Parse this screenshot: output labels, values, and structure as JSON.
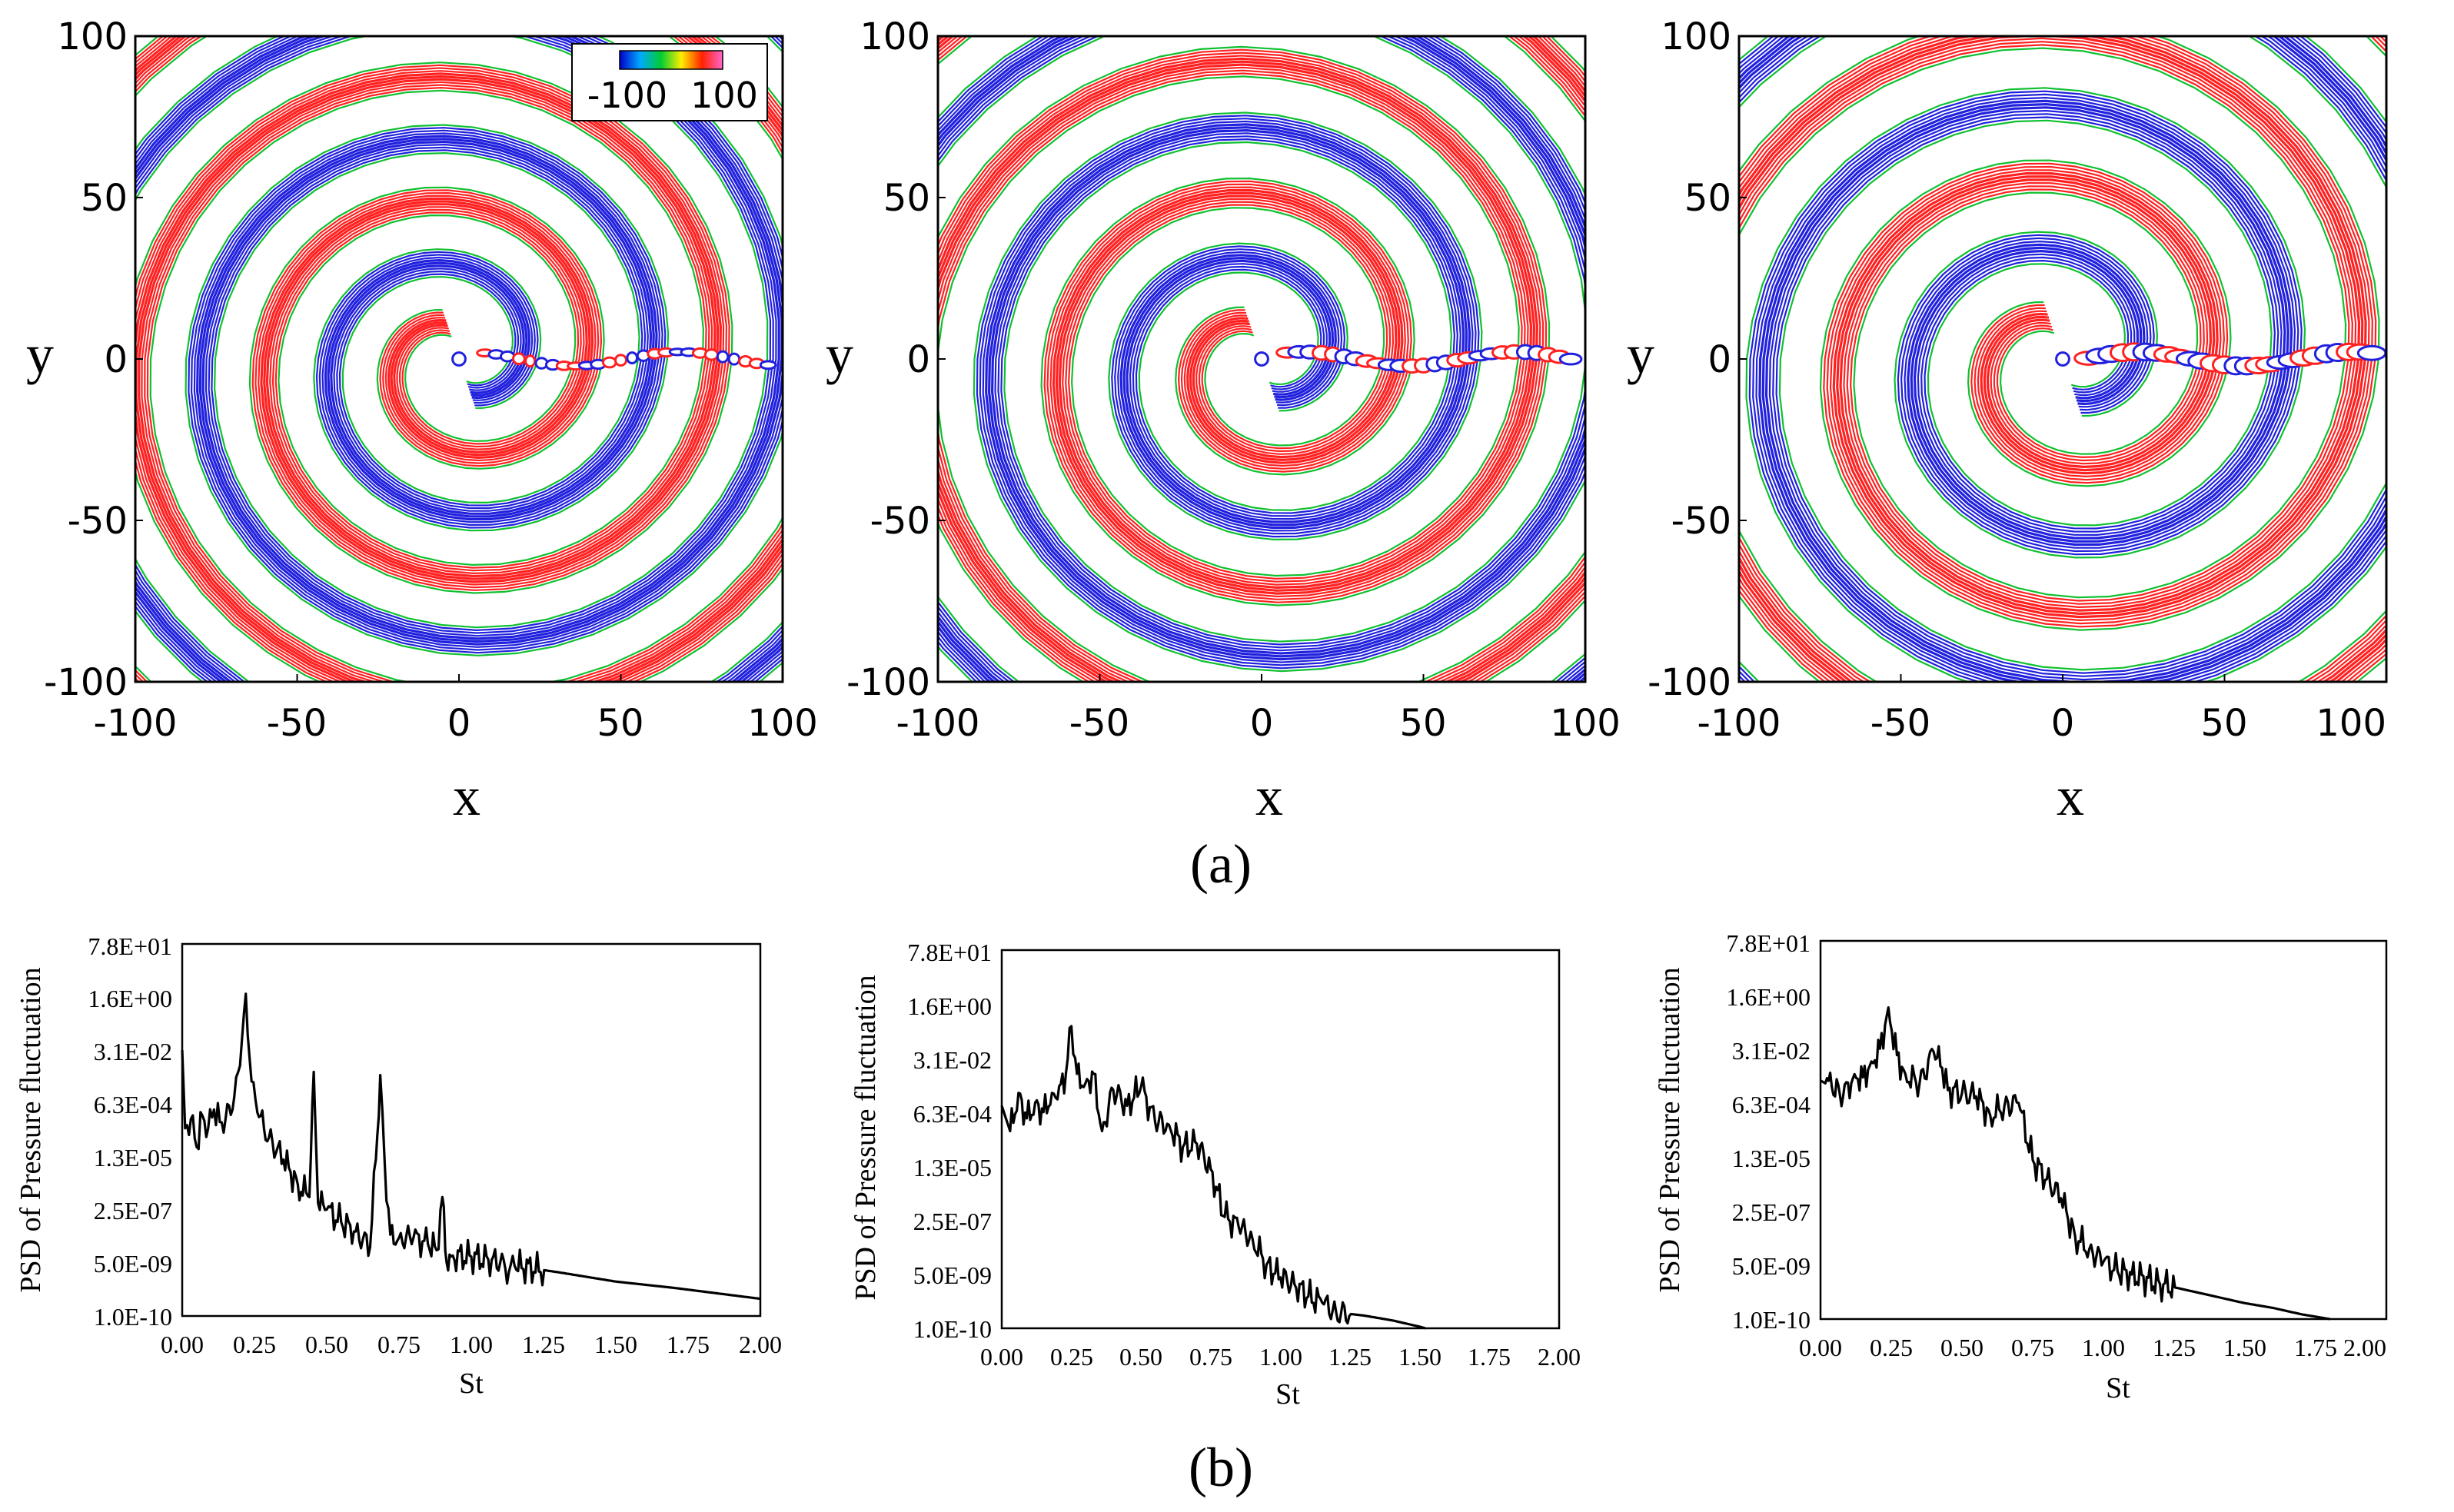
{
  "figure": {
    "panel_labels": {
      "a": "(a)",
      "b": "(b)"
    },
    "colorbar": {
      "min_label": "-100",
      "max_label": "100",
      "colors": [
        "#0000cc",
        "#00aaff",
        "#00cc33",
        "#ffee00",
        "#ff2200",
        "#ff66cc"
      ]
    },
    "contour_colors": {
      "positive": "#ff2020",
      "negative": "#2020dd",
      "zero": "#10c030"
    }
  },
  "chart_data": [
    {
      "type": "contour",
      "title": "",
      "xlabel": "x",
      "ylabel": "y",
      "xlim": [
        -100,
        100
      ],
      "ylim": [
        -100,
        100
      ],
      "xticks": [
        "-100",
        "-50",
        "0",
        "50",
        "100"
      ],
      "yticks": [
        "100",
        "50",
        "0",
        "-50",
        "-100"
      ],
      "wavelength": 19,
      "swirl": 0.9
    },
    {
      "type": "contour",
      "title": "",
      "xlabel": "x",
      "ylabel": "y",
      "xlim": [
        -100,
        100
      ],
      "ylim": [
        -100,
        100
      ],
      "xticks": [
        "-100",
        "-50",
        "0",
        "50",
        "100"
      ],
      "yticks": [
        "100",
        "50",
        "0",
        "-50",
        "-100"
      ],
      "wavelength": 20,
      "swirl": 1.3
    },
    {
      "type": "contour",
      "title": "",
      "xlabel": "x",
      "ylabel": "y",
      "xlim": [
        -100,
        100
      ],
      "ylim": [
        -100,
        100
      ],
      "xticks": [
        "-100",
        "-50",
        "0",
        "50",
        "100"
      ],
      "yticks": [
        "100",
        "50",
        "0",
        "-50",
        "-100"
      ],
      "wavelength": 22,
      "swirl": 1.6
    },
    {
      "type": "line",
      "title": "",
      "xlabel": "St",
      "ylabel": "PSD  of Pressure fluctuation",
      "xlim": [
        0,
        2
      ],
      "yscale": "log",
      "ylim_log10": [
        -10,
        1.892
      ],
      "xticks": [
        "0.00",
        "0.25",
        "0.50",
        "0.75",
        "1.00",
        "1.25",
        "1.50",
        "1.75",
        "2.00"
      ],
      "yticks": [
        "7.8E+01",
        "1.6E+00",
        "3.1E-02",
        "6.3E-04",
        "1.3E-05",
        "2.5E-07",
        "5.0E-09",
        "1.0E-10"
      ],
      "series": [
        {
          "name": "PSD",
          "x": [
            0.0,
            0.01,
            0.03,
            0.05,
            0.07,
            0.09,
            0.11,
            0.13,
            0.15,
            0.18,
            0.2,
            0.22,
            0.24,
            0.26,
            0.3,
            0.35,
            0.4,
            0.44,
            0.455,
            0.47,
            0.5,
            0.55,
            0.6,
            0.65,
            0.67,
            0.685,
            0.7,
            0.72,
            0.75,
            0.8,
            0.85,
            0.88,
            0.9,
            0.915,
            0.93,
            1.0,
            1.1,
            1.13,
            1.15,
            1.3,
            1.5,
            1.7,
            2.0
          ],
          "y": [
            -1.5,
            -4.0,
            -3.7,
            -4.6,
            -3.6,
            -4.0,
            -3.4,
            -3.8,
            -3.7,
            -3.0,
            -2.0,
            0.3,
            -2.5,
            -3.5,
            -4.3,
            -5.0,
            -5.8,
            -6.2,
            -2.2,
            -6.4,
            -6.6,
            -7.0,
            -7.3,
            -7.8,
            -5.0,
            -2.3,
            -5.0,
            -7.4,
            -7.5,
            -7.5,
            -7.7,
            -7.9,
            -6.2,
            -8.3,
            -8.1,
            -8.1,
            -8.3,
            -8.6,
            -8.4,
            -8.6,
            -8.9,
            -9.1,
            -9.45
          ]
        }
      ]
    },
    {
      "type": "line",
      "title": "",
      "xlabel": "St",
      "ylabel": "PSD  of Pressure fluctuation",
      "xlim": [
        0,
        2
      ],
      "yscale": "log",
      "ylim_log10": [
        -10,
        1.892
      ],
      "xticks": [
        "0.00",
        "0.25",
        "0.50",
        "0.75",
        "1.00",
        "1.25",
        "1.50",
        "1.75",
        "2.00"
      ],
      "yticks": [
        "7.8E+01",
        "1.6E+00",
        "3.1E-02",
        "6.3E-04",
        "1.3E-05",
        "2.5E-07",
        "5.0E-09",
        "1.0E-10"
      ],
      "series": [
        {
          "name": "PSD",
          "x": [
            0.0,
            0.03,
            0.06,
            0.09,
            0.12,
            0.15,
            0.18,
            0.2,
            0.23,
            0.25,
            0.27,
            0.3,
            0.33,
            0.36,
            0.4,
            0.45,
            0.5,
            0.55,
            0.6,
            0.65,
            0.7,
            0.75,
            0.8,
            0.85,
            0.9,
            0.95,
            1.0,
            1.05,
            1.1,
            1.15,
            1.2,
            1.3,
            1.4,
            1.5,
            1.52
          ],
          "y": [
            -3.0,
            -3.8,
            -2.6,
            -3.4,
            -2.9,
            -3.2,
            -2.6,
            -2.8,
            -2.0,
            -0.5,
            -2.0,
            -2.3,
            -2.0,
            -3.8,
            -2.5,
            -3.0,
            -2.4,
            -3.5,
            -3.6,
            -4.3,
            -4.2,
            -5.0,
            -6.5,
            -6.8,
            -7.2,
            -8.0,
            -8.4,
            -8.6,
            -9.0,
            -9.2,
            -9.5,
            -9.6,
            -9.75,
            -9.95,
            -10.0
          ]
        }
      ]
    },
    {
      "type": "line",
      "title": "",
      "xlabel": "St",
      "ylabel": "PSD  of Pressure fluctuation",
      "xlim": [
        0,
        2
      ],
      "yscale": "log",
      "ylim_log10": [
        -10,
        1.892
      ],
      "xticks": [
        "0.00",
        "0.25",
        "0.50",
        "0.75",
        "1.00",
        "1.25",
        "1.50",
        "1.75",
        "2.00"
      ],
      "yticks": [
        "7.8E+01",
        "1.6E+00",
        "3.1E-02",
        "6.3E-04",
        "1.3E-05",
        "2.5E-07",
        "5.0E-09",
        "1.0E-10"
      ],
      "series": [
        {
          "name": "PSD",
          "x": [
            0.0,
            0.04,
            0.08,
            0.12,
            0.15,
            0.18,
            0.21,
            0.24,
            0.27,
            0.3,
            0.35,
            0.4,
            0.43,
            0.45,
            0.5,
            0.55,
            0.6,
            0.65,
            0.7,
            0.75,
            0.8,
            0.85,
            0.9,
            0.95,
            1.0,
            1.05,
            1.1,
            1.2,
            1.3,
            1.4,
            1.5,
            1.6,
            1.7,
            1.8
          ],
          "y": [
            -2.5,
            -2.7,
            -3.0,
            -2.3,
            -2.4,
            -1.9,
            -1.5,
            -0.2,
            -1.7,
            -2.3,
            -2.6,
            -1.6,
            -2.1,
            -2.8,
            -2.9,
            -3.0,
            -3.6,
            -3.3,
            -3.2,
            -5.0,
            -5.6,
            -6.2,
            -7.4,
            -7.8,
            -8.2,
            -8.5,
            -8.6,
            -8.9,
            -9.1,
            -9.3,
            -9.5,
            -9.65,
            -9.85,
            -10.0
          ]
        }
      ]
    }
  ]
}
